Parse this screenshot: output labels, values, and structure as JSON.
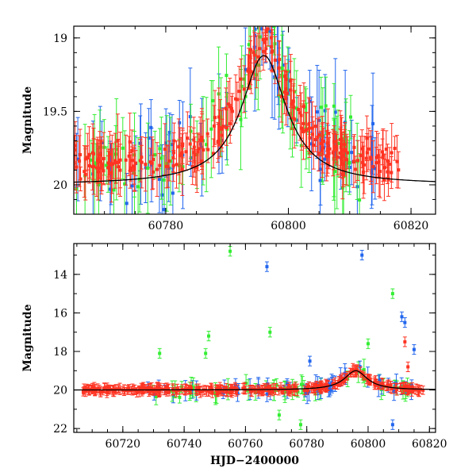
{
  "chart_data": [
    {
      "type": "scatter",
      "panel": "top",
      "xlabel": "",
      "ylabel": "Magnitude",
      "xlim": [
        60765,
        60824
      ],
      "ylim": [
        20.2,
        18.92
      ],
      "y_inverted": true,
      "x_ticks": [
        60780,
        60800,
        60820
      ],
      "x_tick_labels": [
        "60780",
        "60800",
        "60820"
      ],
      "y_ticks": [
        19,
        19.5,
        20
      ],
      "y_tick_labels": [
        "19",
        "19.5",
        "20"
      ],
      "series": [
        {
          "color": "#2266ee",
          "x_range": [
            60765,
            60815
          ],
          "baseline": 19.85,
          "count": 70
        },
        {
          "color": "#33ee33",
          "x_range": [
            60765,
            60813
          ],
          "baseline": 19.65,
          "count": 85
        },
        {
          "color": "#ff3322",
          "x_range": [
            60765,
            60818
          ],
          "baseline": 19.85,
          "count": 260
        }
      ],
      "model_curve": {
        "type": "line",
        "color": "#000000",
        "peak_x": 60796,
        "peak_mag": 19.12,
        "base_mag": 20.0,
        "width_days": 4.5
      }
    },
    {
      "type": "scatter",
      "panel": "bottom",
      "xlabel": "HJD−2400000",
      "ylabel": "Magnitude",
      "xlim": [
        60704,
        60822
      ],
      "ylim": [
        22.2,
        12.4
      ],
      "y_inverted": true,
      "x_ticks": [
        60720,
        60740,
        60760,
        60780,
        60800,
        60820
      ],
      "x_tick_labels": [
        "60720",
        "60740",
        "60760",
        "60780",
        "60800",
        "60820"
      ],
      "y_ticks": [
        14,
        16,
        18,
        20,
        22
      ],
      "y_tick_labels": [
        "14",
        "16",
        "18",
        "20",
        "22"
      ],
      "outliers": [
        {
          "color": "#33ee33",
          "x": 60755,
          "y": 12.8
        },
        {
          "color": "#2266ee",
          "x": 60767,
          "y": 13.6
        },
        {
          "color": "#2266ee",
          "x": 60798,
          "y": 13.0
        },
        {
          "color": "#33ee33",
          "x": 60808,
          "y": 15.0
        },
        {
          "color": "#33ee33",
          "x": 60768,
          "y": 17.0
        },
        {
          "color": "#33ee33",
          "x": 60748,
          "y": 17.2
        },
        {
          "color": "#2266ee",
          "x": 60811,
          "y": 16.2
        },
        {
          "color": "#2266ee",
          "x": 60812,
          "y": 16.5
        },
        {
          "color": "#2266ee",
          "x": 60815,
          "y": 17.9
        },
        {
          "color": "#33ee33",
          "x": 60747,
          "y": 18.1
        },
        {
          "color": "#33ee33",
          "x": 60732,
          "y": 18.1
        },
        {
          "color": "#2266ee",
          "x": 60781,
          "y": 18.5
        },
        {
          "color": "#33ee33",
          "x": 60800,
          "y": 17.6
        },
        {
          "color": "#2266ee",
          "x": 60808,
          "y": 21.8
        },
        {
          "color": "#33ee33",
          "x": 60778,
          "y": 21.8
        },
        {
          "color": "#33ee33",
          "x": 60771,
          "y": 21.3
        },
        {
          "color": "#ff3322",
          "x": 60812,
          "y": 17.5
        },
        {
          "color": "#ff3322",
          "x": 60813,
          "y": 18.8
        }
      ]
    }
  ]
}
